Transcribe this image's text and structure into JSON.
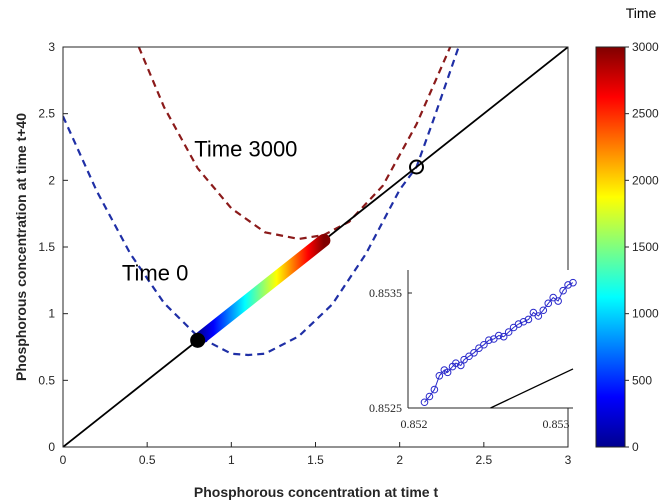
{
  "chart_data": [
    {
      "type": "line",
      "title": "",
      "xlabel": "Phosphorous concentration at time t",
      "ylabel": "Phosphorous concentration at time t+40",
      "xlim": [
        0,
        3
      ],
      "ylim": [
        0,
        3
      ],
      "xticks": [
        "0",
        "0.5",
        "1",
        "1.5",
        "2",
        "2.5",
        "3"
      ],
      "yticks": [
        "0",
        "0.5",
        "1",
        "1.5",
        "2",
        "2.5",
        "3"
      ],
      "grid": false,
      "series": [
        {
          "style": "dashed",
          "color": "#1f2fa6",
          "x": [
            0.0,
            0.2,
            0.4,
            0.6,
            0.8,
            1.0,
            1.1,
            1.2,
            1.4,
            1.6,
            1.8,
            2.0,
            2.1,
            2.2,
            2.35
          ],
          "y": [
            2.48,
            1.92,
            1.45,
            1.08,
            0.83,
            0.7,
            0.69,
            0.7,
            0.83,
            1.07,
            1.45,
            1.93,
            2.1,
            2.45,
            3.0
          ]
        },
        {
          "style": "dashed",
          "color": "#8b1a1a",
          "x": [
            0.45,
            0.6,
            0.8,
            1.0,
            1.2,
            1.4,
            1.55,
            1.7,
            1.9,
            2.1,
            2.3
          ],
          "y": [
            3.0,
            2.55,
            2.09,
            1.79,
            1.61,
            1.56,
            1.59,
            1.69,
            1.96,
            2.42,
            3.0
          ]
        },
        {
          "style": "solid",
          "color": "#000000",
          "x": [
            0,
            3
          ],
          "y": [
            0,
            3
          ]
        },
        {
          "style": "trajectory",
          "colormap": "jet",
          "x": [
            0.8,
            1.55
          ],
          "y": [
            0.8,
            1.55
          ],
          "time": [
            0,
            3000
          ]
        }
      ],
      "points": [
        {
          "x": 0.8,
          "y": 0.8,
          "marker": "filled-circle",
          "color": "#000000"
        },
        {
          "x": 2.1,
          "y": 2.1,
          "marker": "open-circle",
          "color": "#000000"
        }
      ],
      "annotations": [
        {
          "text": "Time 3000",
          "x": 0.78,
          "y": 2.18
        },
        {
          "text": "Time 0",
          "x": 0.35,
          "y": 1.25
        }
      ],
      "colorbar": {
        "title": "Time",
        "colormap": "jet",
        "range": [
          0,
          3000
        ],
        "ticks": [
          "0",
          "500",
          "1000",
          "1500",
          "2000",
          "2500",
          "3000"
        ]
      }
    },
    {
      "type": "scatter",
      "title": "",
      "xlim": [
        0.852,
        0.853
      ],
      "ylim": [
        0.8525,
        0.8537
      ],
      "xtick_labels": [
        "0.852",
        "0.853"
      ],
      "ytick_labels": [
        "0.8525",
        "0.8535"
      ],
      "marker": "open-circle",
      "color": "#2a2acb",
      "x": [
        0.8521,
        0.85213,
        0.85216,
        0.85219,
        0.85222,
        0.85224,
        0.85227,
        0.85229,
        0.85232,
        0.85234,
        0.85237,
        0.8524,
        0.85243,
        0.85246,
        0.85249,
        0.85252,
        0.85255,
        0.85258,
        0.85261,
        0.85264,
        0.85267,
        0.8527,
        0.85273,
        0.85276,
        0.85279,
        0.85282,
        0.85285,
        0.85288,
        0.85291,
        0.85294,
        0.85297,
        0.853
      ],
      "y": [
        0.85255,
        0.8526,
        0.85266,
        0.85278,
        0.85283,
        0.85281,
        0.85286,
        0.85289,
        0.85287,
        0.85292,
        0.85295,
        0.85298,
        0.85302,
        0.85305,
        0.85309,
        0.8531,
        0.85313,
        0.85312,
        0.85316,
        0.8532,
        0.85323,
        0.85325,
        0.85327,
        0.85333,
        0.8533,
        0.85335,
        0.85341,
        0.85346,
        0.85343,
        0.85352,
        0.85357,
        0.85359
      ],
      "reference_line": {
        "x": [
          0.8525,
          0.853
        ],
        "y": [
          0.8525,
          0.85284
        ]
      }
    }
  ]
}
